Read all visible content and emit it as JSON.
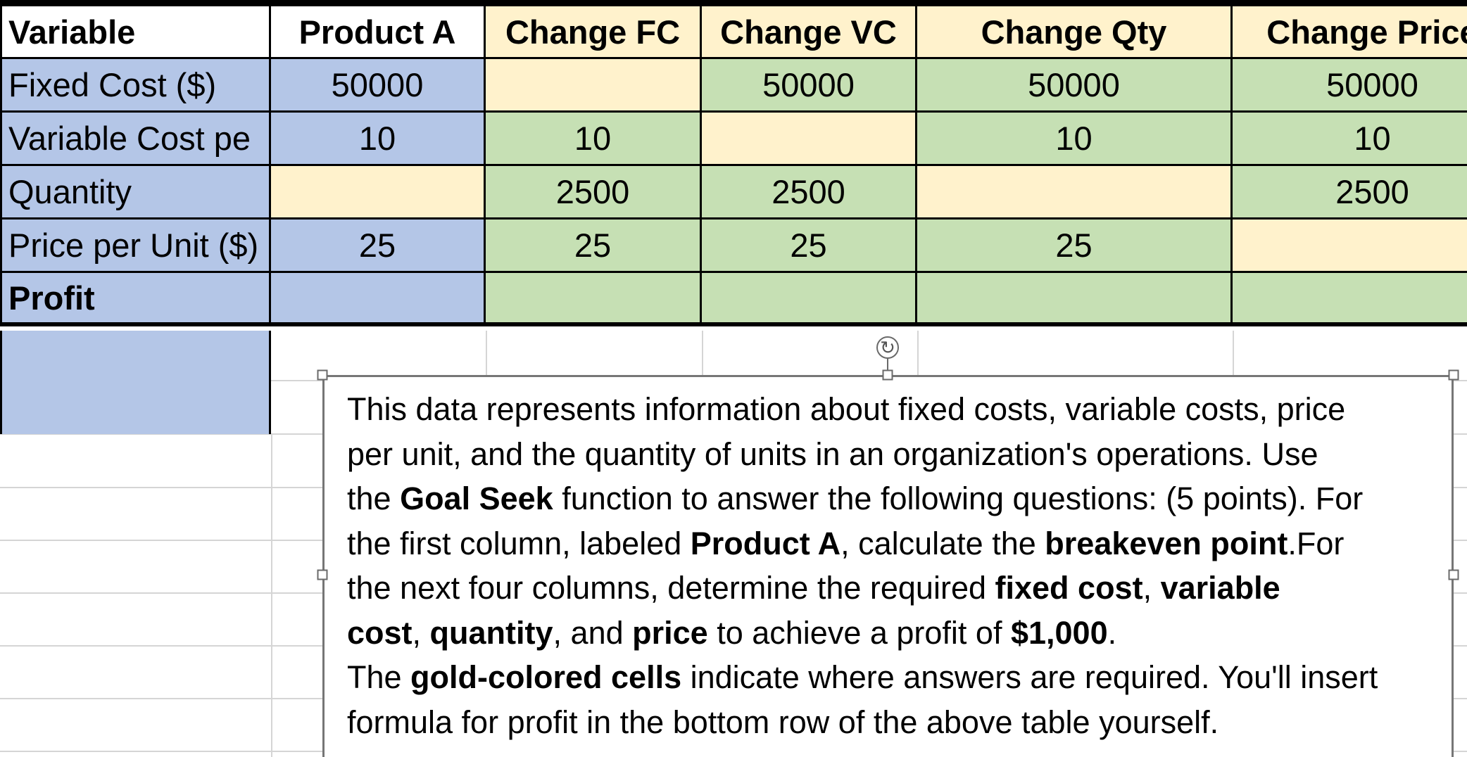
{
  "colors": {
    "blue": "#b4c6e7",
    "gold": "#fff2cc",
    "green": "#c6e0b4",
    "grid": "#d5d5d5",
    "table_border": "#000000",
    "textbox_border": "#767676",
    "handle_border": "#6a6a6a"
  },
  "table": {
    "header": [
      {
        "label": "Variable",
        "fill": "white",
        "align": "left"
      },
      {
        "label": "Product A",
        "fill": "white",
        "align": "center"
      },
      {
        "label": "Change FC",
        "fill": "gold",
        "align": "center"
      },
      {
        "label": "Change VC",
        "fill": "gold",
        "align": "center"
      },
      {
        "label": "Change Qty",
        "fill": "gold",
        "align": "center"
      },
      {
        "label": "Change Price",
        "fill": "gold",
        "align": "center"
      }
    ],
    "rows": [
      {
        "label": "Fixed Cost ($)",
        "label_fill": "blue",
        "bold": false,
        "cells": [
          {
            "value": "50000",
            "fill": "blue"
          },
          {
            "value": "",
            "fill": "gold"
          },
          {
            "value": "50000",
            "fill": "green"
          },
          {
            "value": "50000",
            "fill": "green"
          },
          {
            "value": "50000",
            "fill": "green"
          }
        ]
      },
      {
        "label": "Variable Cost pe",
        "label_fill": "blue",
        "bold": false,
        "cells": [
          {
            "value": "10",
            "fill": "blue"
          },
          {
            "value": "10",
            "fill": "green"
          },
          {
            "value": "",
            "fill": "gold"
          },
          {
            "value": "10",
            "fill": "green"
          },
          {
            "value": "10",
            "fill": "green"
          }
        ]
      },
      {
        "label": "Quantity",
        "label_fill": "blue",
        "bold": false,
        "cells": [
          {
            "value": "",
            "fill": "gold"
          },
          {
            "value": "2500",
            "fill": "green"
          },
          {
            "value": "2500",
            "fill": "green"
          },
          {
            "value": "",
            "fill": "gold"
          },
          {
            "value": "2500",
            "fill": "green"
          }
        ]
      },
      {
        "label": "Price per Unit ($)",
        "label_fill": "blue",
        "bold": false,
        "cells": [
          {
            "value": "25",
            "fill": "blue"
          },
          {
            "value": "25",
            "fill": "green"
          },
          {
            "value": "25",
            "fill": "green"
          },
          {
            "value": "25",
            "fill": "green"
          },
          {
            "value": "",
            "fill": "gold"
          }
        ]
      },
      {
        "label": "Profit",
        "label_fill": "blue",
        "bold": true,
        "cells": [
          {
            "value": "",
            "fill": "blue"
          },
          {
            "value": "",
            "fill": "green"
          },
          {
            "value": "",
            "fill": "green"
          },
          {
            "value": "",
            "fill": "green"
          },
          {
            "value": "",
            "fill": "green"
          }
        ]
      }
    ]
  },
  "textbox": {
    "rotate_icon": "↻",
    "lines": [
      [
        {
          "t": "This data represents information about fixed costs, variable costs, price"
        }
      ],
      [
        {
          "t": "per unit, and the quantity of units in an organization's operations. Use"
        }
      ],
      [
        {
          "t": "the "
        },
        {
          "t": "Goal Seek",
          "b": true
        },
        {
          "t": " function to answer the following questions: (5 points). For"
        }
      ],
      [
        {
          "t": "the first column, labeled "
        },
        {
          "t": "Product A",
          "b": true
        },
        {
          "t": ", calculate the "
        },
        {
          "t": "breakeven point",
          "b": true
        },
        {
          "t": ".For"
        }
      ],
      [
        {
          "t": "the next four columns, determine the required "
        },
        {
          "t": "fixed cost",
          "b": true
        },
        {
          "t": ", "
        },
        {
          "t": "variable",
          "b": true
        }
      ],
      [
        {
          "t": "cost",
          "b": true
        },
        {
          "t": ", "
        },
        {
          "t": "quantity",
          "b": true
        },
        {
          "t": ", and "
        },
        {
          "t": "price",
          "b": true
        },
        {
          "t": " to achieve a profit of "
        },
        {
          "t": "$1,000",
          "b": true
        },
        {
          "t": "."
        }
      ],
      [
        {
          "t": "The "
        },
        {
          "t": "gold-colored cells",
          "b": true
        },
        {
          "t": " indicate where answers are required. You'll insert"
        }
      ],
      [
        {
          "t": "formula for profit in the bottom row of the above table yourself."
        }
      ]
    ]
  }
}
